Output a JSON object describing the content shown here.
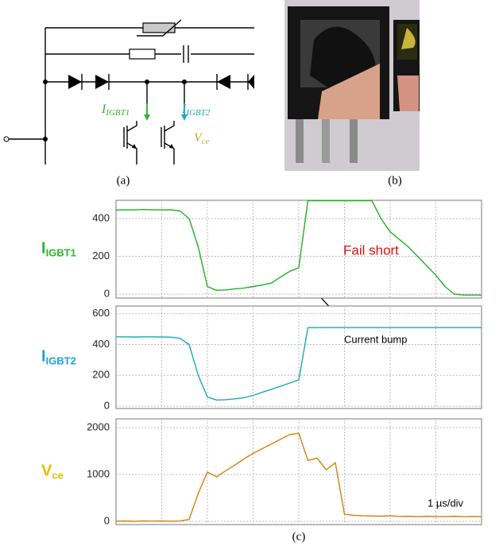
{
  "circuit": {
    "i1": {
      "main": "I",
      "sub": "IGBT1"
    },
    "i2": {
      "main": "I",
      "sub": "IGBT2"
    },
    "vce": {
      "main": "V",
      "sub": "ce"
    }
  },
  "captions": {
    "a": "(a)",
    "b": "(b)",
    "c": "(c)"
  },
  "chart_data": [
    {
      "type": "line",
      "ylabel": {
        "main": "I",
        "sub": "IGBT1"
      },
      "label_color": "#2db52d",
      "color": "#22b022",
      "ylim": [
        -21,
        497
      ],
      "yticks": [
        0,
        200,
        400
      ],
      "grid": true,
      "annotation": {
        "text": "Fail short",
        "color": "#e01010"
      },
      "values": [
        445,
        447,
        446,
        448,
        447,
        446,
        447,
        440,
        400,
        250,
        40,
        20,
        22,
        28,
        32,
        40,
        48,
        58,
        90,
        120,
        140,
        495,
        495,
        495,
        495,
        495,
        495,
        495,
        495,
        400,
        330,
        290,
        250,
        200,
        150,
        100,
        40,
        0,
        -5,
        -5,
        -5
      ]
    },
    {
      "type": "line",
      "ylabel": {
        "main": "I",
        "sub": "IGBT2"
      },
      "label_color": "#1aa7d6",
      "color": "#1aabb0",
      "ylim": [
        -15,
        650
      ],
      "yticks": [
        0,
        200,
        400,
        600
      ],
      "grid": true,
      "annotation": {
        "text": "Current bump",
        "color": "#000000"
      },
      "values": [
        450,
        450,
        449,
        450,
        450,
        449,
        448,
        440,
        400,
        200,
        60,
        40,
        42,
        48,
        55,
        70,
        90,
        110,
        130,
        150,
        170,
        510,
        510,
        510,
        510,
        510,
        510,
        510,
        510,
        510,
        510,
        510,
        510,
        510,
        510,
        510,
        510,
        510,
        510,
        510,
        510
      ]
    },
    {
      "type": "line",
      "ylabel": {
        "main": "V",
        "sub": "ce"
      },
      "label_color": "#e0c000",
      "color": "#d4820a",
      "ylim": [
        -68,
        2186
      ],
      "yticks": [
        0,
        1000,
        2000
      ],
      "grid": true,
      "annotation": {
        "text": "1 µs/div",
        "color": "#000000"
      },
      "values": [
        5,
        8,
        4,
        10,
        6,
        8,
        5,
        10,
        40,
        600,
        1050,
        950,
        1080,
        1200,
        1330,
        1450,
        1550,
        1650,
        1750,
        1850,
        1880,
        1300,
        1350,
        1100,
        1250,
        150,
        130,
        120,
        115,
        110,
        120,
        105,
        110,
        100,
        110,
        105,
        100,
        110,
        100,
        105,
        100
      ]
    }
  ]
}
